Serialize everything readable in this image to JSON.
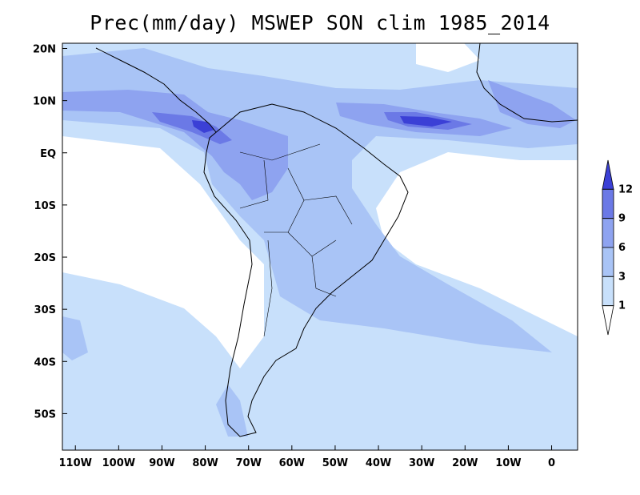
{
  "title": "Prec(mm/day) MSWEP SON clim 1985_2014",
  "map": {
    "lat_labels": [
      "20N",
      "10N",
      "EQ",
      "10S",
      "20S",
      "30S",
      "40S",
      "50S"
    ],
    "lon_labels": [
      "110W",
      "100W",
      "90W",
      "80W",
      "70W",
      "60W",
      "50W",
      "40W",
      "30W",
      "20W",
      "10W",
      "0"
    ],
    "lat_values": [
      20,
      10,
      0,
      -10,
      -20,
      -30,
      -40,
      -50
    ],
    "lon_values": [
      -110,
      -100,
      -90,
      -80,
      -70,
      -60,
      -50,
      -40,
      -30,
      -20,
      -10,
      0
    ],
    "extent": {
      "lon_min": -113,
      "lon_max": 6,
      "lat_min": -57,
      "lat_max": 21
    },
    "land_outline_color": "#000000",
    "ocean_color": "#ffffff"
  },
  "colorbar": {
    "labels": [
      "1",
      "3",
      "6",
      "9",
      "12"
    ],
    "bins": [
      {
        "range": "<1",
        "color": "#ffffff"
      },
      {
        "range": "1-3",
        "color": "#c8e0fb"
      },
      {
        "range": "3-6",
        "color": "#a9c4f6"
      },
      {
        "range": "6-9",
        "color": "#8ea3f0"
      },
      {
        "range": "9-12",
        "color": "#6b79e6"
      },
      {
        "range": ">12",
        "color": "#3b40d6"
      }
    ]
  }
}
